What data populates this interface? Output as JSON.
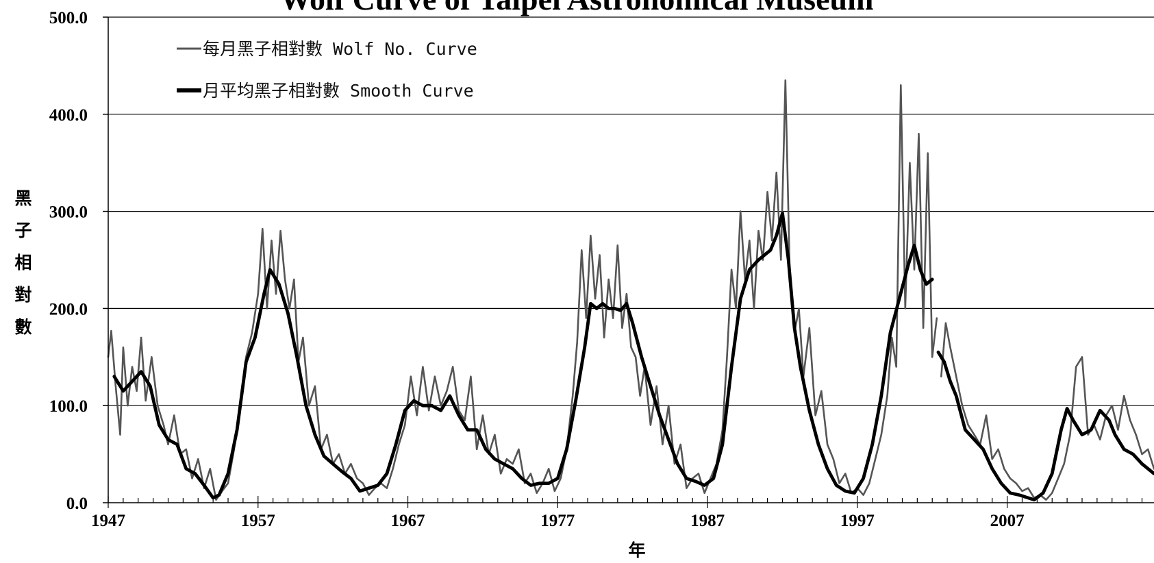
{
  "chart_data": {
    "type": "line",
    "title": "Wolf Curve of Taipei Astronomical Museum",
    "xlabel": "年",
    "ylabel": "黑子相對數",
    "xlim": [
      1947,
      2016.8
    ],
    "ylim": [
      0,
      500
    ],
    "x_ticks": [
      1947,
      1957,
      1967,
      1977,
      1987,
      1997,
      2007
    ],
    "y_ticks": [
      "0.0",
      "100.0",
      "200.0",
      "300.0",
      "400.0",
      "500.0"
    ],
    "y_tick_values": [
      0,
      100,
      200,
      300,
      400,
      500
    ],
    "grid": true,
    "legend_position": "top-left",
    "colors": {
      "monthly": "#555555",
      "smooth": "#000000"
    },
    "series": [
      {
        "name": "每月黑子相對數 Wolf No. Curve",
        "style": "thin-gray",
        "x": [
          1947.0,
          1947.2,
          1947.5,
          1947.8,
          1948.0,
          1948.3,
          1948.6,
          1948.9,
          1949.2,
          1949.5,
          1949.9,
          1950.3,
          1950.7,
          1951.0,
          1951.4,
          1951.8,
          1952.2,
          1952.6,
          1953.0,
          1953.4,
          1953.8,
          1954.2,
          1954.6,
          1955.0,
          1955.4,
          1955.8,
          1956.2,
          1956.6,
          1957.0,
          1957.3,
          1957.6,
          1957.9,
          1958.2,
          1958.5,
          1958.8,
          1959.1,
          1959.4,
          1959.7,
          1960.0,
          1960.4,
          1960.8,
          1961.2,
          1961.6,
          1962.0,
          1962.4,
          1962.8,
          1963.2,
          1963.6,
          1964.0,
          1964.4,
          1964.8,
          1965.2,
          1965.6,
          1966.0,
          1966.4,
          1966.8,
          1967.2,
          1967.6,
          1968.0,
          1968.4,
          1968.8,
          1969.2,
          1969.6,
          1970.0,
          1970.4,
          1970.8,
          1971.2,
          1971.6,
          1972.0,
          1972.4,
          1972.8,
          1973.2,
          1973.6,
          1974.0,
          1974.4,
          1974.8,
          1975.2,
          1975.6,
          1976.0,
          1976.4,
          1976.8,
          1977.2,
          1977.6,
          1978.0,
          1978.3,
          1978.6,
          1978.9,
          1979.2,
          1979.5,
          1979.8,
          1980.1,
          1980.4,
          1980.7,
          1981.0,
          1981.3,
          1981.6,
          1981.9,
          1982.2,
          1982.5,
          1982.8,
          1983.2,
          1983.6,
          1984.0,
          1984.4,
          1984.8,
          1985.2,
          1985.6,
          1986.0,
          1986.4,
          1986.8,
          1987.2,
          1987.6,
          1988.0,
          1988.3,
          1988.6,
          1988.9,
          1989.2,
          1989.5,
          1989.8,
          1990.1,
          1990.4,
          1990.7,
          1991.0,
          1991.3,
          1991.6,
          1991.9,
          1992.2,
          1992.5,
          1992.8,
          1993.1,
          1993.4,
          1993.8,
          1994.2,
          1994.6,
          1995.0,
          1995.4,
          1995.8,
          1996.2,
          1996.6,
          1997.0,
          1997.4,
          1997.8,
          1998.2,
          1998.6,
          1999.0,
          1999.3,
          1999.6,
          1999.9,
          2000.2,
          2000.5,
          2000.8,
          2001.1,
          2001.4,
          2001.7,
          2002.0,
          2002.3,
          2002.6,
          2002.9,
          2003.2,
          2003.6,
          2004.0,
          2004.4,
          2004.8,
          2005.2,
          2005.6,
          2006.0,
          2006.4,
          2006.8,
          2007.2,
          2007.6,
          2008.0,
          2008.4,
          2008.8,
          2009.2,
          2009.6,
          2010.0,
          2010.4,
          2010.8,
          2011.2,
          2011.6,
          2012.0,
          2012.4,
          2012.8,
          2013.2,
          2013.6,
          2014.0,
          2014.4,
          2014.8,
          2015.2,
          2015.6,
          2016.0,
          2016.4,
          2016.8
        ],
        "values": [
          150,
          177,
          120,
          70,
          160,
          100,
          140,
          115,
          170,
          105,
          150,
          100,
          80,
          60,
          90,
          50,
          55,
          25,
          45,
          15,
          35,
          3,
          12,
          20,
          55,
          100,
          150,
          175,
          215,
          282,
          200,
          270,
          215,
          280,
          230,
          200,
          230,
          145,
          170,
          100,
          120,
          55,
          70,
          40,
          50,
          30,
          40,
          25,
          20,
          8,
          15,
          20,
          15,
          35,
          60,
          80,
          130,
          90,
          140,
          95,
          130,
          100,
          115,
          140,
          95,
          85,
          130,
          55,
          90,
          50,
          70,
          30,
          45,
          40,
          55,
          20,
          30,
          10,
          20,
          35,
          12,
          25,
          55,
          110,
          165,
          260,
          190,
          275,
          210,
          255,
          170,
          230,
          190,
          265,
          180,
          215,
          160,
          150,
          110,
          140,
          80,
          120,
          60,
          100,
          40,
          60,
          15,
          25,
          30,
          10,
          25,
          40,
          75,
          150,
          240,
          200,
          300,
          230,
          270,
          200,
          280,
          250,
          320,
          270,
          340,
          250,
          435,
          230,
          175,
          200,
          130,
          180,
          90,
          115,
          60,
          45,
          20,
          30,
          10,
          15,
          8,
          20,
          45,
          70,
          110,
          170,
          140,
          430,
          200,
          350,
          240,
          380,
          180,
          360,
          150,
          190,
          130,
          185,
          160,
          130,
          100,
          80,
          70,
          60,
          90,
          45,
          55,
          35,
          25,
          20,
          12,
          15,
          5,
          8,
          3,
          10,
          25,
          40,
          70,
          140,
          150,
          70,
          80,
          65,
          90,
          100,
          75,
          110,
          85,
          70,
          50,
          55,
          35
        ],
        "gap_after_index": 155
      },
      {
        "name": "月平均黑子相對數 Smooth Curve",
        "style": "thick-black",
        "x": [
          1947.4,
          1948.0,
          1948.6,
          1949.2,
          1949.8,
          1950.4,
          1951.0,
          1951.6,
          1952.2,
          1952.8,
          1953.4,
          1954.0,
          1954.4,
          1955.0,
          1955.6,
          1956.2,
          1956.8,
          1957.4,
          1957.8,
          1958.4,
          1959.0,
          1959.6,
          1960.2,
          1960.8,
          1961.4,
          1962.0,
          1962.6,
          1963.2,
          1963.8,
          1964.4,
          1965.0,
          1965.6,
          1966.2,
          1966.8,
          1967.4,
          1968.0,
          1968.6,
          1969.2,
          1969.8,
          1970.4,
          1971.0,
          1971.6,
          1972.2,
          1972.8,
          1973.4,
          1974.0,
          1974.6,
          1975.2,
          1975.8,
          1976.4,
          1977.0,
          1977.6,
          1978.2,
          1978.8,
          1979.2,
          1979.6,
          1980.0,
          1980.4,
          1980.8,
          1981.2,
          1981.6,
          1982.0,
          1982.6,
          1983.2,
          1983.8,
          1984.4,
          1985.0,
          1985.6,
          1986.2,
          1986.8,
          1987.4,
          1988.0,
          1988.6,
          1989.2,
          1989.8,
          1990.4,
          1990.8,
          1991.2,
          1991.6,
          1992.0,
          1992.4,
          1992.8,
          1993.2,
          1993.8,
          1994.4,
          1995.0,
          1995.6,
          1996.2,
          1996.8,
          1997.4,
          1998.0,
          1998.6,
          1999.2,
          1999.8,
          2000.4,
          2000.8,
          2001.2,
          2001.6,
          2002.0,
          2002.4,
          2002.8,
          2003.2,
          2003.6,
          2004.2,
          2004.8,
          2005.4,
          2006.0,
          2006.6,
          2007.2,
          2007.8,
          2008.4,
          2008.8,
          2009.4,
          2010.0,
          2010.6,
          2011.0,
          2011.4,
          2012.0,
          2012.6,
          2013.2,
          2013.8,
          2014.2,
          2014.8,
          2015.4,
          2016.0,
          2016.8
        ],
        "values": [
          130,
          115,
          125,
          135,
          120,
          80,
          65,
          60,
          35,
          30,
          18,
          5,
          8,
          30,
          75,
          145,
          170,
          215,
          240,
          225,
          195,
          150,
          100,
          70,
          48,
          40,
          32,
          25,
          12,
          15,
          18,
          30,
          60,
          95,
          105,
          100,
          100,
          95,
          110,
          90,
          75,
          75,
          55,
          45,
          40,
          35,
          25,
          18,
          20,
          20,
          25,
          55,
          105,
          160,
          205,
          200,
          205,
          200,
          200,
          198,
          205,
          185,
          150,
          120,
          90,
          65,
          40,
          25,
          22,
          18,
          25,
          60,
          140,
          210,
          240,
          250,
          255,
          260,
          275,
          298,
          250,
          180,
          140,
          95,
          60,
          35,
          18,
          12,
          10,
          25,
          60,
          110,
          175,
          210,
          245,
          265,
          240,
          225,
          230,
          155,
          145,
          125,
          110,
          75,
          65,
          55,
          35,
          20,
          10,
          8,
          5,
          3,
          10,
          30,
          75,
          97,
          85,
          70,
          75,
          95,
          85,
          70,
          55,
          50,
          40,
          30
        ],
        "gap_after_index": 98
      }
    ]
  }
}
